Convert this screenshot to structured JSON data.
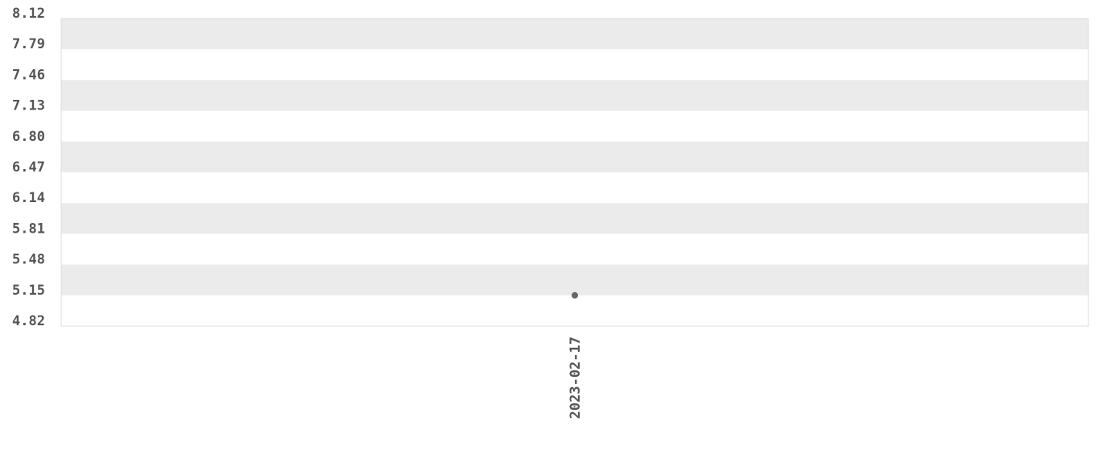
{
  "chart_data": {
    "type": "scatter",
    "title": "",
    "xlabel": "",
    "ylabel": "",
    "x_tick_labels": [
      "2023-02-17"
    ],
    "y_tick_labels": [
      "8.12",
      "7.79",
      "7.46",
      "7.13",
      "6.80",
      "6.47",
      "6.14",
      "5.81",
      "5.48",
      "5.15",
      "4.82"
    ],
    "ylim": [
      4.82,
      8.12
    ],
    "grid": "alternating horizontal bands",
    "points": [
      {
        "x": "2023-02-17",
        "y": 5.15
      }
    ],
    "colors": {
      "point": "#666666",
      "band": "#ebebeb",
      "border": "#dddddd",
      "text": "#555555"
    }
  }
}
